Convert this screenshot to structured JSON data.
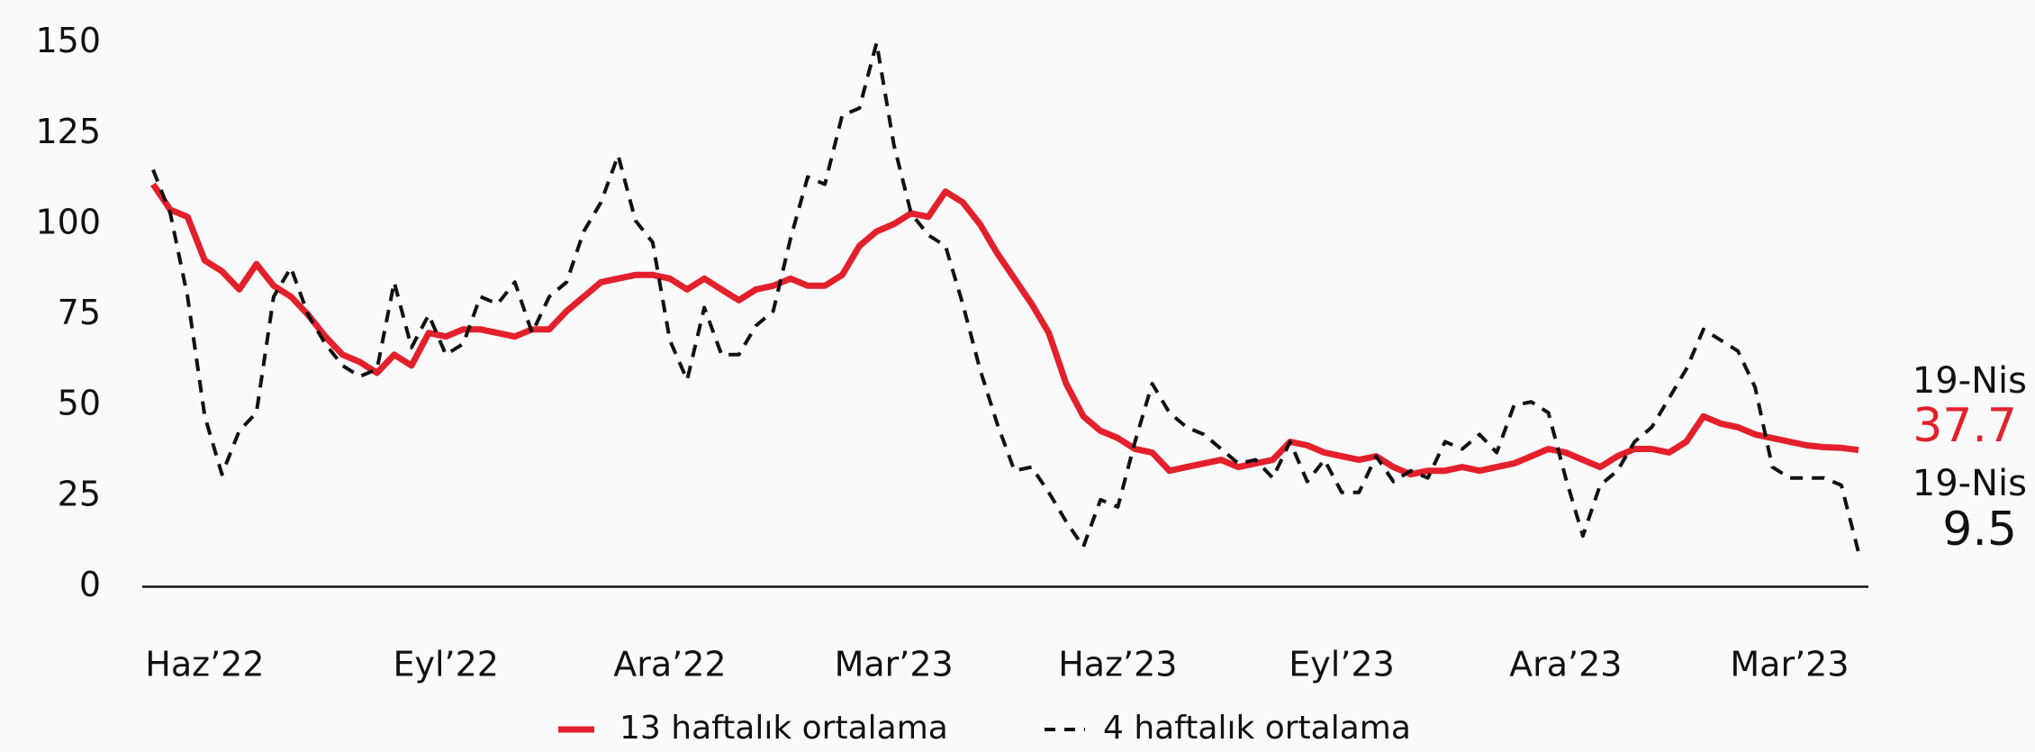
{
  "chart_data": {
    "type": "line",
    "categories": [
      null,
      null,
      null,
      "Haz’22",
      null,
      null,
      null,
      null,
      null,
      null,
      null,
      null,
      null,
      null,
      null,
      null,
      null,
      "Eyl’22",
      null,
      null,
      null,
      null,
      null,
      null,
      null,
      null,
      null,
      null,
      null,
      null,
      "Ara’22",
      null,
      null,
      null,
      null,
      null,
      null,
      null,
      null,
      null,
      null,
      null,
      null,
      "Mar’23",
      null,
      null,
      null,
      null,
      null,
      null,
      null,
      null,
      null,
      null,
      null,
      null,
      "Haz’23",
      null,
      null,
      null,
      null,
      null,
      null,
      null,
      null,
      null,
      null,
      null,
      null,
      "Eyl’23",
      null,
      null,
      null,
      null,
      null,
      null,
      null,
      null,
      null,
      null,
      null,
      null,
      "Ara’23",
      null,
      null,
      null,
      null,
      null,
      null,
      null,
      null,
      null,
      null,
      null,
      null,
      "Mar’23",
      null,
      null,
      null,
      null
    ],
    "series": [
      {
        "name": "13 haftalık ortalama",
        "color": "#e3202b",
        "dash": false,
        "last_label": "19-Nis",
        "values": [
          111,
          104,
          102,
          90,
          87,
          82,
          89,
          83,
          80,
          75,
          69,
          64,
          62,
          59,
          64,
          61,
          70,
          69,
          71,
          71,
          70,
          69,
          71,
          71,
          76,
          80,
          84,
          85,
          86,
          86,
          85,
          82,
          85,
          82,
          79,
          82,
          83,
          85,
          83,
          83,
          86,
          94,
          98,
          100,
          103,
          102,
          109,
          106,
          100,
          92,
          85,
          78,
          70,
          56,
          47,
          43,
          41,
          38,
          37,
          32,
          33,
          34,
          35,
          33,
          34,
          35,
          40,
          39,
          37,
          36,
          35,
          36,
          33,
          31,
          32,
          32,
          33,
          32,
          33,
          34,
          36,
          38,
          37,
          35,
          33,
          36,
          38,
          38,
          37,
          40,
          47,
          45,
          44,
          42,
          41,
          40,
          39,
          38.5,
          38.3,
          37.7
        ]
      },
      {
        "name": "4 haftalık ortalama",
        "color": "#111111",
        "dash": true,
        "last_label": "19-Nis",
        "values": [
          115,
          103,
          80,
          47,
          31,
          43,
          48,
          80,
          88,
          75,
          67,
          61,
          58,
          60,
          84,
          66,
          75,
          64,
          67,
          80,
          78,
          84,
          70,
          80,
          84,
          98,
          106,
          119,
          101,
          95,
          68,
          57,
          77,
          64,
          64,
          72,
          76,
          96,
          113,
          111,
          130,
          132,
          150,
          122,
          103,
          97,
          94,
          78,
          60,
          45,
          32,
          33,
          26,
          18,
          11,
          24,
          22,
          40,
          56,
          48,
          44,
          42,
          38,
          34,
          35,
          30,
          40,
          29,
          35,
          26,
          26,
          36,
          29,
          32,
          30,
          40,
          38,
          42,
          37,
          50,
          51,
          48,
          30,
          14,
          28,
          32,
          40,
          44,
          52,
          60,
          71,
          68,
          65,
          55,
          33,
          30,
          30,
          30,
          28,
          9.5
        ]
      }
    ],
    "ylim": [
      0,
      150
    ],
    "yticks": [
      0,
      25,
      50,
      75,
      100,
      125,
      150
    ],
    "grid": false
  }
}
